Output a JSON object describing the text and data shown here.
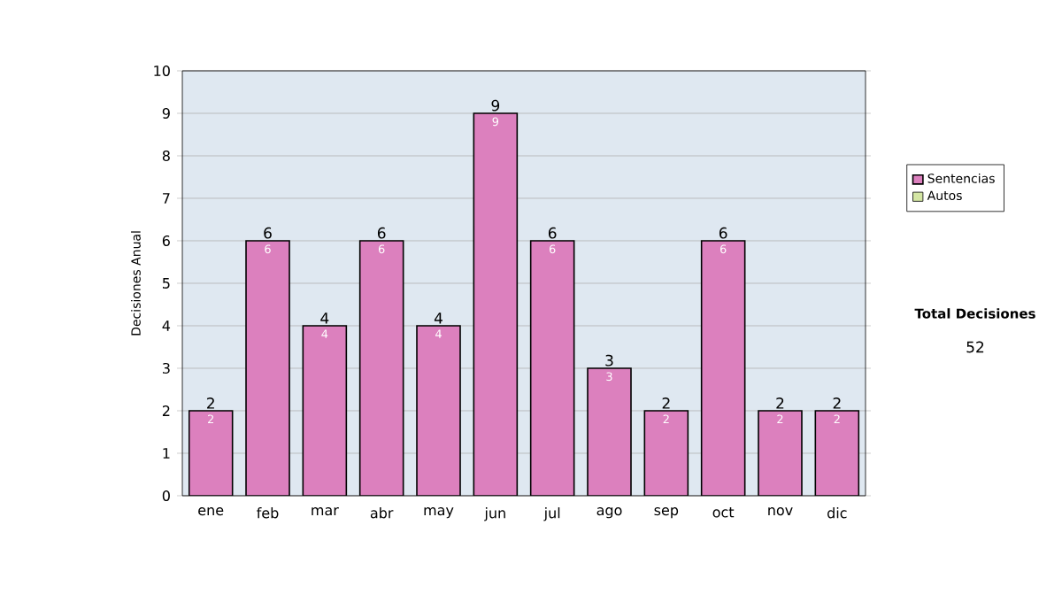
{
  "chart_data": {
    "type": "bar",
    "ylabel": "Decisiones Anual",
    "categories": [
      "ene",
      "feb",
      "mar",
      "abr",
      "may",
      "jun",
      "jul",
      "ago",
      "sep",
      "oct",
      "nov",
      "dic"
    ],
    "series": [
      {
        "name": "Sentencias",
        "color": "#dc80be",
        "values": [
          2,
          6,
          4,
          6,
          4,
          9,
          6,
          3,
          2,
          6,
          2,
          2
        ]
      },
      {
        "name": "Autos",
        "color": "#d4e6a4",
        "values": [
          null,
          null,
          null,
          null,
          null,
          null,
          null,
          null,
          null,
          null,
          null,
          null
        ]
      }
    ],
    "data_labels": true,
    "totals": [
      "2",
      "6",
      "4",
      "6",
      "4",
      "9",
      "6",
      "3",
      "2",
      "6",
      "2",
      "2"
    ],
    "ylim": [
      0,
      10
    ],
    "yticks": [
      0,
      1,
      2,
      3,
      4,
      5,
      6,
      7,
      8,
      9,
      10
    ],
    "grid": "y",
    "legend": "right",
    "annotations": [
      "Total Decisiones",
      "52"
    ]
  }
}
